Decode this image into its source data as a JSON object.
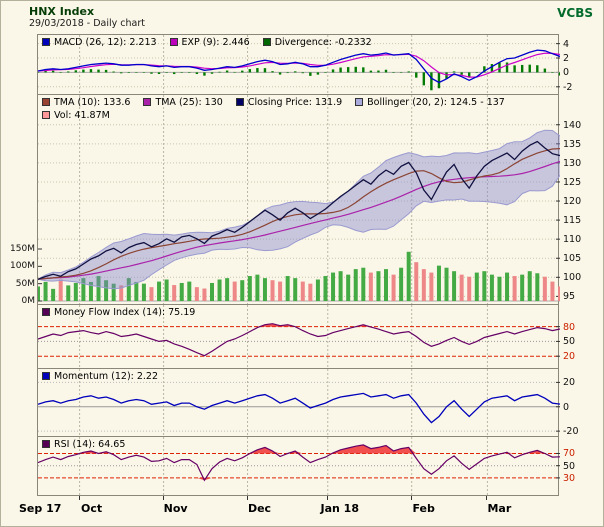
{
  "header": {
    "title": "HNX Index",
    "subtitle": "29/03/2018 - Daily chart",
    "brand": "VCBS"
  },
  "chart_data": {
    "type": "line",
    "title": "HNX Index daily chart with MACD, Bollinger bands, volume, MFI, Momentum and RSI panels",
    "x_axis": {
      "labels": [
        {
          "label": "Sep 17",
          "f": 0.0,
          "grid": false
        },
        {
          "label": "Oct",
          "f": 0.0797,
          "grid": true
        },
        {
          "label": "Nov",
          "f": 0.2406,
          "grid": true
        },
        {
          "label": "Dec",
          "f": 0.4014,
          "grid": true
        },
        {
          "label": "Jan 18",
          "f": 0.5551,
          "grid": true
        },
        {
          "label": "Feb",
          "f": 0.7159,
          "grid": true
        },
        {
          "label": "Mar",
          "f": 0.8609,
          "grid": true
        }
      ]
    },
    "colors": {
      "macd_line": "#0000cc",
      "signal_line": "#cc00cc",
      "hist": "#007a00",
      "close": "#101040",
      "tma10": "#8b4434",
      "tma25": "#aa22aa",
      "boll_fill": "#8282cd",
      "boll_edge": "#9a9ad0",
      "vol_up": "#44aa44",
      "vol_down": "#ee8888",
      "mfi": "#660066",
      "momentum": "#0000bb",
      "rsi": "#660066",
      "fill_red": "#ee3333"
    },
    "panels": {
      "macd": {
        "legend": [
          {
            "label": "MACD (26, 12): 2.213",
            "color": "#0000bb"
          },
          {
            "label": "EXP (9): 2.446",
            "color": "#bb00bb"
          },
          {
            "label": "Divergence: -0.2332",
            "color": "#006600"
          }
        ],
        "yticks": [
          {
            "v": 4
          },
          {
            "v": 2
          },
          {
            "v": 0
          },
          {
            "v": -2
          }
        ],
        "ref_lines": [
          {
            "v": 0,
            "color": "#aaaaaa",
            "dash": ""
          }
        ],
        "series": {
          "macd": [
            0.2,
            0.4,
            0.5,
            0.4,
            0.5,
            0.7,
            0.9,
            1.1,
            1.2,
            1.3,
            1.2,
            1.0,
            1.0,
            1.1,
            1.1,
            0.9,
            0.8,
            0.9,
            0.7,
            0.8,
            0.8,
            0.6,
            0.3,
            0.4,
            0.6,
            0.8,
            0.7,
            0.9,
            1.2,
            1.5,
            1.7,
            1.5,
            1.1,
            1.2,
            1.4,
            1.2,
            0.8,
            0.8,
            1.0,
            1.4,
            1.8,
            2.1,
            2.4,
            2.6,
            2.4,
            2.5,
            2.7,
            2.4,
            2.5,
            2.6,
            1.8,
            0.5,
            -0.8,
            -1.4,
            -0.9,
            -0.2,
            -0.6,
            -1.1,
            -0.6,
            0.2,
            0.8,
            1.4,
            1.9,
            2.0,
            2.4,
            2.8,
            3.1,
            3.0,
            2.6,
            2.213
          ]
        }
      },
      "price": {
        "legend": [
          {
            "label": "TMA (10): 133.6",
            "color": "#994433"
          },
          {
            "label": "TMA (25): 130",
            "color": "#aa22aa"
          },
          {
            "label": "Closing Price: 131.9",
            "color": "#000066"
          },
          {
            "label": "Bollinger (20, 2): 124.5 - 137",
            "color": "#aaaadd"
          }
        ],
        "legend2": [
          {
            "label": "Vol: 41.87M",
            "color": "#ff9999"
          }
        ],
        "yticks": [
          {
            "v": 140
          },
          {
            "v": 135
          },
          {
            "v": 130
          },
          {
            "v": 125
          },
          {
            "v": 120
          },
          {
            "v": 115
          },
          {
            "v": 110
          },
          {
            "v": 105
          },
          {
            "v": 100
          },
          {
            "v": 95
          }
        ],
        "vol_ticks": [
          {
            "label": "150M",
            "v": 150
          },
          {
            "label": "100M",
            "v": 100
          },
          {
            "label": "50M",
            "v": 50
          },
          {
            "label": "0M",
            "v": 0
          }
        ],
        "series": {
          "close": [
            99.5,
            100.2,
            100.8,
            100.3,
            101.5,
            102.2,
            103.5,
            104.8,
            105.6,
            106.9,
            107.6,
            106.4,
            107.8,
            108.6,
            109.1,
            108.0,
            108.8,
            110.1,
            109.2,
            110.6,
            111.0,
            110.1,
            108.9,
            110.8,
            111.6,
            112.5,
            111.8,
            113.1,
            114.6,
            116.1,
            117.6,
            116.4,
            115.0,
            116.9,
            118.1,
            116.9,
            115.4,
            116.6,
            117.9,
            119.6,
            121.2,
            122.6,
            124.1,
            125.6,
            124.4,
            126.6,
            128.1,
            127.0,
            129.1,
            130.1,
            127.4,
            122.9,
            120.4,
            124.1,
            127.6,
            129.6,
            125.9,
            123.4,
            126.6,
            129.1,
            130.6,
            131.6,
            132.6,
            130.9,
            133.1,
            134.6,
            135.6,
            133.9,
            132.4,
            131.9
          ],
          "volume": [
            42,
            55,
            35,
            62,
            45,
            52,
            66,
            55,
            72,
            60,
            50,
            45,
            66,
            55,
            50,
            40,
            56,
            62,
            46,
            52,
            56,
            40,
            36,
            52,
            62,
            66,
            56,
            60,
            72,
            76,
            66,
            60,
            56,
            72,
            66,
            56,
            50,
            62,
            72,
            82,
            86,
            76,
            92,
            96,
            82,
            86,
            92,
            76,
            96,
            142,
            112,
            92,
            82,
            102,
            96,
            86,
            76,
            70,
            82,
            86,
            76,
            70,
            82,
            72,
            76,
            86,
            80,
            70,
            56,
            41.87
          ]
        }
      },
      "mfi": {
        "legend": [
          {
            "label": "Money Flow Index (14): 75.19",
            "color": "#550055"
          }
        ],
        "yticks": [
          {
            "v": 80,
            "color": "#cc2200"
          },
          {
            "v": 50
          },
          {
            "v": 20,
            "color": "#cc2200"
          }
        ],
        "ref_lines": [
          {
            "v": 80,
            "color": "#dd2200",
            "dash": "4,2"
          },
          {
            "v": 50,
            "color": "#999999",
            "dash": "1,2"
          },
          {
            "v": 20,
            "color": "#dd2200",
            "dash": "4,2"
          }
        ],
        "series": {
          "mfi": [
            55,
            60,
            65,
            62,
            68,
            70,
            72,
            68,
            65,
            70,
            66,
            60,
            62,
            65,
            60,
            55,
            50,
            52,
            45,
            40,
            34,
            27,
            21,
            30,
            40,
            50,
            55,
            62,
            70,
            78,
            84,
            86,
            82,
            84,
            80,
            72,
            65,
            60,
            62,
            68,
            72,
            76,
            80,
            84,
            79,
            75,
            70,
            65,
            68,
            70,
            60,
            48,
            40,
            45,
            52,
            58,
            50,
            44,
            50,
            58,
            62,
            66,
            70,
            65,
            70,
            74,
            78,
            76,
            72,
            75.19
          ]
        }
      },
      "momentum": {
        "legend": [
          {
            "label": "Momentum (12): 2.22",
            "color": "#0000bb"
          }
        ],
        "yticks": [
          {
            "v": 20
          },
          {
            "v": 0
          },
          {
            "v": -20
          }
        ],
        "ref_lines": [
          {
            "v": 20,
            "color": "#bbbbbb",
            "dash": "1,2"
          },
          {
            "v": 0,
            "color": "#999999",
            "dash": ""
          },
          {
            "v": -20,
            "color": "#bbbbbb",
            "dash": "1,2"
          }
        ],
        "series": {
          "momentum": [
            2,
            4,
            5,
            3,
            5,
            6,
            8,
            9,
            7,
            8,
            6,
            3,
            5,
            6,
            5,
            2,
            3,
            4,
            1,
            3,
            3,
            0,
            -2,
            1,
            3,
            5,
            3,
            5,
            7,
            9,
            10,
            7,
            3,
            5,
            7,
            3,
            -1,
            1,
            3,
            6,
            8,
            9,
            10,
            11,
            8,
            9,
            10,
            7,
            9,
            10,
            3,
            -6,
            -13,
            -8,
            0,
            5,
            -2,
            -8,
            -2,
            4,
            7,
            8,
            9,
            5,
            8,
            9,
            10,
            7,
            3,
            2.22
          ]
        }
      },
      "rsi": {
        "legend": [
          {
            "label": "RSI (14): 64.65",
            "color": "#550055"
          }
        ],
        "yticks": [
          {
            "v": 70,
            "color": "#cc2200"
          },
          {
            "v": 50
          },
          {
            "v": 30,
            "color": "#cc2200"
          }
        ],
        "ref_lines": [
          {
            "v": 70,
            "color": "#dd2200",
            "dash": "4,2"
          },
          {
            "v": 50,
            "color": "#999999",
            "dash": "1,2"
          },
          {
            "v": 30,
            "color": "#dd2200",
            "dash": "4,2"
          }
        ],
        "series": {
          "rsi": [
            55,
            60,
            64,
            60,
            65,
            68,
            72,
            74,
            70,
            73,
            68,
            60,
            64,
            67,
            64,
            57,
            58,
            62,
            55,
            60,
            60,
            52,
            26,
            45,
            56,
            62,
            58,
            63,
            70,
            76,
            80,
            74,
            65,
            70,
            74,
            64,
            55,
            60,
            64,
            71,
            76,
            79,
            82,
            84,
            78,
            80,
            83,
            74,
            78,
            80,
            62,
            45,
            36,
            45,
            58,
            66,
            54,
            44,
            53,
            62,
            66,
            69,
            72,
            63,
            68,
            72,
            75,
            70,
            64,
            64.65
          ]
        }
      }
    }
  }
}
